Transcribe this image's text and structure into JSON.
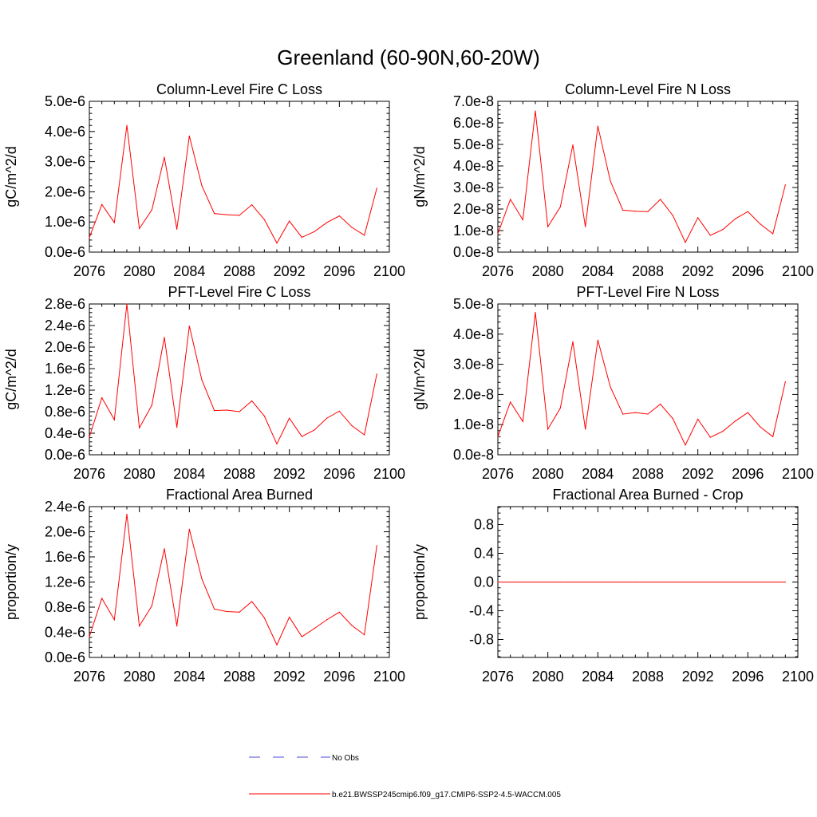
{
  "figure_title": "Greenland (60-90N,60-20W)",
  "legend": {
    "entries": [
      {
        "label": "No Obs",
        "style": "dashed",
        "color": "#4a4ad8"
      },
      {
        "label": "b.e21.BWSSP245cmip6.f09_g17.CMIP6-SSP2-4.5-WACCM.005",
        "style": "solid",
        "color": "#ff0000"
      }
    ]
  },
  "series_color": "#ff0000",
  "chart_data": [
    {
      "type": "line",
      "title": "Column-Level Fire C Loss",
      "xlabel": "",
      "ylabel": "gC/m^2/d",
      "xlim": [
        2076,
        2100
      ],
      "ylim": [
        0,
        5e-06
      ],
      "xticks": [
        2076,
        2080,
        2084,
        2088,
        2092,
        2096,
        2100
      ],
      "xtick_labels": [
        "2076",
        "2080",
        "2084",
        "2088",
        "2092",
        "2096",
        "2100"
      ],
      "yticks": [
        0,
        1e-06,
        2e-06,
        3e-06,
        4e-06,
        5e-06
      ],
      "ytick_labels": [
        "0.0e-6",
        "1.0e-6",
        "2.0e-6",
        "3.0e-6",
        "4.0e-6",
        "5.0e-6"
      ],
      "x": [
        2076,
        2077,
        2078,
        2079,
        2080,
        2081,
        2082,
        2083,
        2084,
        2085,
        2086,
        2087,
        2088,
        2089,
        2090,
        2091,
        2092,
        2093,
        2094,
        2095,
        2096,
        2097,
        2098,
        2099
      ],
      "series": [
        {
          "name": "b.e21.BWSSP245cmip6.f09_g17.CMIP6-SSP2-4.5-WACCM.005",
          "values": [
            4.8e-07,
            1.58e-06,
            9.8e-07,
            4.2e-06,
            7.8e-07,
            1.4e-06,
            3.15e-06,
            7.6e-07,
            3.85e-06,
            2.2e-06,
            1.28e-06,
            1.24e-06,
            1.22e-06,
            1.57e-06,
            1.08e-06,
            3e-07,
            1.03e-06,
            4.9e-07,
            6.8e-07,
            9.8e-07,
            1.2e-06,
            8.2e-07,
            5.6e-07,
            2.12e-06
          ]
        }
      ]
    },
    {
      "type": "line",
      "title": "Column-Level Fire N Loss",
      "xlabel": "",
      "ylabel": "gN/m^2/d",
      "xlim": [
        2076,
        2100
      ],
      "ylim": [
        0,
        7e-08
      ],
      "xticks": [
        2076,
        2080,
        2084,
        2088,
        2092,
        2096,
        2100
      ],
      "xtick_labels": [
        "2076",
        "2080",
        "2084",
        "2088",
        "2092",
        "2096",
        "2100"
      ],
      "yticks": [
        0,
        1e-08,
        2e-08,
        3e-08,
        4e-08,
        5e-08,
        6e-08,
        7e-08
      ],
      "ytick_labels": [
        "0.0e-8",
        "1.0e-8",
        "2.0e-8",
        "3.0e-8",
        "4.0e-8",
        "5.0e-8",
        "6.0e-8",
        "7.0e-8"
      ],
      "x": [
        2076,
        2077,
        2078,
        2079,
        2080,
        2081,
        2082,
        2083,
        2084,
        2085,
        2086,
        2087,
        2088,
        2089,
        2090,
        2091,
        2092,
        2093,
        2094,
        2095,
        2096,
        2097,
        2098,
        2099
      ],
      "series": [
        {
          "name": "b.e21.BWSSP245cmip6.f09_g17.CMIP6-SSP2-4.5-WACCM.005",
          "values": [
            8.5e-09,
            2.45e-08,
            1.5e-08,
            6.55e-08,
            1.18e-08,
            2.1e-08,
            4.98e-08,
            1.18e-08,
            5.85e-08,
            3.3e-08,
            1.95e-08,
            1.9e-08,
            1.88e-08,
            2.45e-08,
            1.7e-08,
            4.5e-09,
            1.6e-08,
            7.8e-09,
            1.05e-08,
            1.55e-08,
            1.88e-08,
            1.3e-08,
            8.5e-09,
            3.12e-08
          ]
        }
      ]
    },
    {
      "type": "line",
      "title": "PFT-Level Fire C Loss",
      "xlabel": "",
      "ylabel": "gC/m^2/d",
      "xlim": [
        2076,
        2100
      ],
      "ylim": [
        0,
        2.8e-06
      ],
      "xticks": [
        2076,
        2080,
        2084,
        2088,
        2092,
        2096,
        2100
      ],
      "xtick_labels": [
        "2076",
        "2080",
        "2084",
        "2088",
        "2092",
        "2096",
        "2100"
      ],
      "yticks": [
        0,
        4e-07,
        8e-07,
        1.2e-06,
        1.6e-06,
        2e-06,
        2.4e-06,
        2.8e-06
      ],
      "ytick_labels": [
        "0.0e-6",
        "0.4e-6",
        "0.8e-6",
        "1.2e-6",
        "1.6e-6",
        "2.0e-6",
        "2.4e-6",
        "2.8e-6"
      ],
      "x": [
        2076,
        2077,
        2078,
        2079,
        2080,
        2081,
        2082,
        2083,
        2084,
        2085,
        2086,
        2087,
        2088,
        2089,
        2090,
        2091,
        2092,
        2093,
        2094,
        2095,
        2096,
        2097,
        2098,
        2099
      ],
      "series": [
        {
          "name": "b.e21.BWSSP245cmip6.f09_g17.CMIP6-SSP2-4.5-WACCM.005",
          "values": [
            3.3e-07,
            1.06e-06,
            6.5e-07,
            2.8e-06,
            5e-07,
            9.2e-07,
            2.18e-06,
            5.1e-07,
            2.39e-06,
            1.39e-06,
            8.2e-07,
            8.3e-07,
            8e-07,
            1e-06,
            7.2e-07,
            2e-07,
            6.8e-07,
            3.4e-07,
            4.6e-07,
            6.8e-07,
            8.1e-07,
            5.4e-07,
            3.7e-07,
            1.5e-06
          ]
        }
      ]
    },
    {
      "type": "line",
      "title": "PFT-Level Fire N Loss",
      "xlabel": "",
      "ylabel": "gN/m^2/d",
      "xlim": [
        2076,
        2100
      ],
      "ylim": [
        0,
        5e-08
      ],
      "xticks": [
        2076,
        2080,
        2084,
        2088,
        2092,
        2096,
        2100
      ],
      "xtick_labels": [
        "2076",
        "2080",
        "2084",
        "2088",
        "2092",
        "2096",
        "2100"
      ],
      "yticks": [
        0,
        1e-08,
        2e-08,
        3e-08,
        4e-08,
        5e-08
      ],
      "ytick_labels": [
        "0.0e-8",
        "1.0e-8",
        "2.0e-8",
        "3.0e-8",
        "4.0e-8",
        "5.0e-8"
      ],
      "x": [
        2076,
        2077,
        2078,
        2079,
        2080,
        2081,
        2082,
        2083,
        2084,
        2085,
        2086,
        2087,
        2088,
        2089,
        2090,
        2091,
        2092,
        2093,
        2094,
        2095,
        2096,
        2097,
        2098,
        2099
      ],
      "series": [
        {
          "name": "b.e21.BWSSP245cmip6.f09_g17.CMIP6-SSP2-4.5-WACCM.005",
          "values": [
            6e-09,
            1.75e-08,
            1.1e-08,
            4.72e-08,
            8.5e-09,
            1.55e-08,
            3.75e-08,
            8.5e-09,
            3.8e-08,
            2.25e-08,
            1.35e-08,
            1.4e-08,
            1.35e-08,
            1.68e-08,
            1.2e-08,
            3.2e-09,
            1.18e-08,
            5.8e-09,
            7.8e-09,
            1.12e-08,
            1.4e-08,
            9.2e-09,
            6e-09,
            2.42e-08
          ]
        }
      ]
    },
    {
      "type": "line",
      "title": "Fractional Area Burned",
      "xlabel": "",
      "ylabel": "proportion/y",
      "xlim": [
        2076,
        2100
      ],
      "ylim": [
        0,
        2.4e-06
      ],
      "xticks": [
        2076,
        2080,
        2084,
        2088,
        2092,
        2096,
        2100
      ],
      "xtick_labels": [
        "2076",
        "2080",
        "2084",
        "2088",
        "2092",
        "2096",
        "2100"
      ],
      "yticks": [
        0,
        4e-07,
        8e-07,
        1.2e-06,
        1.6e-06,
        2e-06,
        2.4e-06
      ],
      "ytick_labels": [
        "0.0e-6",
        "0.4e-6",
        "0.8e-6",
        "1.2e-6",
        "1.6e-6",
        "2.0e-6",
        "2.4e-6"
      ],
      "x": [
        2076,
        2077,
        2078,
        2079,
        2080,
        2081,
        2082,
        2083,
        2084,
        2085,
        2086,
        2087,
        2088,
        2089,
        2090,
        2091,
        2092,
        2093,
        2094,
        2095,
        2096,
        2097,
        2098,
        2099
      ],
      "series": [
        {
          "name": "b.e21.BWSSP245cmip6.f09_g17.CMIP6-SSP2-4.5-WACCM.005",
          "values": [
            3.3e-07,
            9.4e-07,
            6e-07,
            2.28e-06,
            5e-07,
            8.2e-07,
            1.73e-06,
            5e-07,
            2.04e-06,
            1.25e-06,
            7.7e-07,
            7.3e-07,
            7.2e-07,
            8.9e-07,
            6.3e-07,
            2e-07,
            6.4e-07,
            3.3e-07,
            4.6e-07,
            6e-07,
            7.2e-07,
            5.1e-07,
            3.6e-07,
            1.78e-06
          ]
        }
      ]
    },
    {
      "type": "line",
      "title": "Fractional Area Burned - Crop",
      "xlabel": "",
      "ylabel": "proportion/y",
      "xlim": [
        2076,
        2100
      ],
      "ylim": [
        -1.05,
        1.05
      ],
      "xticks": [
        2076,
        2080,
        2084,
        2088,
        2092,
        2096,
        2100
      ],
      "xtick_labels": [
        "2076",
        "2080",
        "2084",
        "2088",
        "2092",
        "2096",
        "2100"
      ],
      "yticks": [
        -0.8,
        -0.4,
        0.0,
        0.4,
        0.8
      ],
      "ytick_labels": [
        "-0.8",
        "-0.4",
        "0.0",
        "0.4",
        "0.8"
      ],
      "x": [
        2076,
        2077,
        2078,
        2079,
        2080,
        2081,
        2082,
        2083,
        2084,
        2085,
        2086,
        2087,
        2088,
        2089,
        2090,
        2091,
        2092,
        2093,
        2094,
        2095,
        2096,
        2097,
        2098,
        2099
      ],
      "series": [
        {
          "name": "b.e21.BWSSP245cmip6.f09_g17.CMIP6-SSP2-4.5-WACCM.005",
          "values": [
            0,
            0,
            0,
            0,
            0,
            0,
            0,
            0,
            0,
            0,
            0,
            0,
            0,
            0,
            0,
            0,
            0,
            0,
            0,
            0,
            0,
            0,
            0,
            0
          ]
        }
      ]
    }
  ]
}
